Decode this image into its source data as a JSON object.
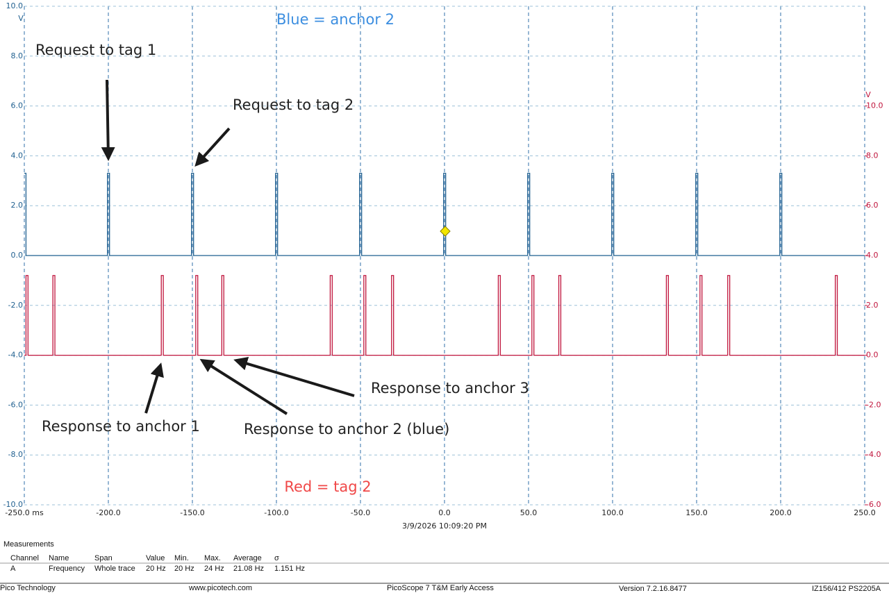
{
  "chart_data": {
    "type": "line",
    "timestamp": "3/9/2026 10:09:20 PM",
    "y_unit": "V",
    "y2_unit": "V",
    "annotations": [
      "Blue = anchor 2",
      "Red = tag 2",
      "Request to tag 1",
      "Request to tag 2",
      "Response to anchor 1",
      "Response to anchor 2 (blue)",
      "Response to anchor 3"
    ],
    "xlim": [
      -250,
      250
    ],
    "xticks": [
      {
        "value": -250,
        "label": "-250.0 ms"
      },
      {
        "value": -200,
        "label": "-200.0"
      },
      {
        "value": -150,
        "label": "-150.0"
      },
      {
        "value": -100,
        "label": "-100.0"
      },
      {
        "value": -50,
        "label": "-50.0"
      },
      {
        "value": 0,
        "label": "0.0"
      },
      {
        "value": 50,
        "label": "50.0"
      },
      {
        "value": 100,
        "label": "100.0"
      },
      {
        "value": 150,
        "label": "150.0"
      },
      {
        "value": 200,
        "label": "200.0"
      },
      {
        "value": 250,
        "label": "250.0"
      }
    ],
    "ylim": [
      -10,
      10
    ],
    "yticks": [
      {
        "value": -10,
        "label": "-10.0"
      },
      {
        "value": -8,
        "label": "-8.0"
      },
      {
        "value": -6,
        "label": "-6.0"
      },
      {
        "value": -4,
        "label": "-4.0"
      },
      {
        "value": -2,
        "label": "-2.0"
      },
      {
        "value": 0,
        "label": "0.0"
      },
      {
        "value": 2,
        "label": "2.0"
      },
      {
        "value": 4,
        "label": "4.0"
      },
      {
        "value": 6,
        "label": "6.0"
      },
      {
        "value": 8,
        "label": "8.0"
      },
      {
        "value": 10,
        "label": "10.0"
      }
    ],
    "y2lim": [
      -6,
      14
    ],
    "y2ticks": [
      {
        "value": -6,
        "label": "-6.0"
      },
      {
        "value": -4,
        "label": "-4.0"
      },
      {
        "value": -2,
        "label": "-2.0"
      },
      {
        "value": 0,
        "label": "0.0"
      },
      {
        "value": 2,
        "label": "2.0"
      },
      {
        "value": 4,
        "label": "4.0"
      },
      {
        "value": 6,
        "label": "6.0"
      },
      {
        "value": 8,
        "label": "8.0"
      },
      {
        "value": 10,
        "label": "10.0"
      }
    ],
    "grid": true,
    "series": [
      {
        "color": "#1f5f8f",
        "x": [
          -250,
          -249,
          -249,
          -200.5,
          -200.5,
          -199.3,
          -199.3,
          -150.5,
          -150.5,
          -149.3,
          -149.3,
          -100.5,
          -100.5,
          -99.3,
          -99.3,
          -50.5,
          -50.5,
          -49.3,
          -49.3,
          -0.5,
          -0.5,
          0.7,
          0.7,
          49.5,
          49.5,
          50.7,
          50.7,
          99.5,
          99.5,
          100.7,
          100.7,
          149.5,
          149.5,
          150.7,
          150.7,
          199.5,
          199.5,
          200.7,
          200.7,
          250
        ],
        "values": [
          3.3,
          3.3,
          0,
          0,
          3.3,
          3.3,
          0,
          0,
          3.3,
          3.3,
          0,
          0,
          3.3,
          3.3,
          0,
          0,
          3.3,
          3.3,
          0,
          0,
          3.3,
          3.3,
          0,
          0,
          3.3,
          3.3,
          0,
          0,
          3.3,
          3.3,
          0,
          0,
          3.3,
          3.3,
          0,
          0,
          3.3,
          3.3,
          0,
          0
        ]
      },
      {
        "color": "#c0143c",
        "axis": "y2",
        "x": [
          -250,
          -249,
          -249,
          -247.8,
          -247.8,
          -233,
          -233,
          -231.8,
          -231.8,
          -168.5,
          -168.5,
          -167.3,
          -167.3,
          -148,
          -148,
          -146.8,
          -146.8,
          -132.5,
          -132.5,
          -131.3,
          -131.3,
          -68,
          -68,
          -66.8,
          -66.8,
          -48,
          -48,
          -46.8,
          -46.8,
          -31.5,
          -31.5,
          -30.3,
          -30.3,
          32,
          32,
          33.2,
          33.2,
          52,
          52,
          53.2,
          53.2,
          68,
          68,
          69.2,
          69.2,
          132,
          132,
          133.2,
          133.2,
          152,
          152,
          153.2,
          153.2,
          168.5,
          168.5,
          169.7,
          169.7,
          232.5,
          232.5,
          233.7,
          233.7,
          250
        ],
        "values": [
          0,
          0,
          3.2,
          3.2,
          0,
          0,
          3.2,
          3.2,
          0,
          0,
          3.2,
          3.2,
          0,
          0,
          3.2,
          3.2,
          0,
          0,
          3.2,
          3.2,
          0,
          0,
          3.2,
          3.2,
          0,
          0,
          3.2,
          3.2,
          0,
          0,
          3.2,
          3.2,
          0,
          0,
          3.2,
          3.2,
          0,
          0,
          3.2,
          3.2,
          0,
          0,
          3.2,
          3.2,
          0,
          0,
          3.2,
          3.2,
          0,
          0,
          3.2,
          3.2,
          0,
          0,
          3.2,
          3.2,
          0,
          0,
          3.2,
          3.2,
          0,
          0
        ]
      }
    ]
  },
  "measurements": {
    "title": "Measurements",
    "columns": [
      "Channel",
      "Name",
      "Span",
      "Value",
      "Min.",
      "Max.",
      "Average",
      "σ"
    ],
    "rows": [
      [
        "A",
        "Frequency",
        "Whole trace",
        "20 Hz",
        "20 Hz",
        "24 Hz",
        "21.08 Hz",
        "1.151 Hz"
      ]
    ]
  },
  "footer": [
    "Pico Technology",
    "www.picotech.com",
    "PicoScope 7 T&M Early Access",
    "Version 7.2.16.8477",
    "IZ156/412 PS2205A"
  ]
}
